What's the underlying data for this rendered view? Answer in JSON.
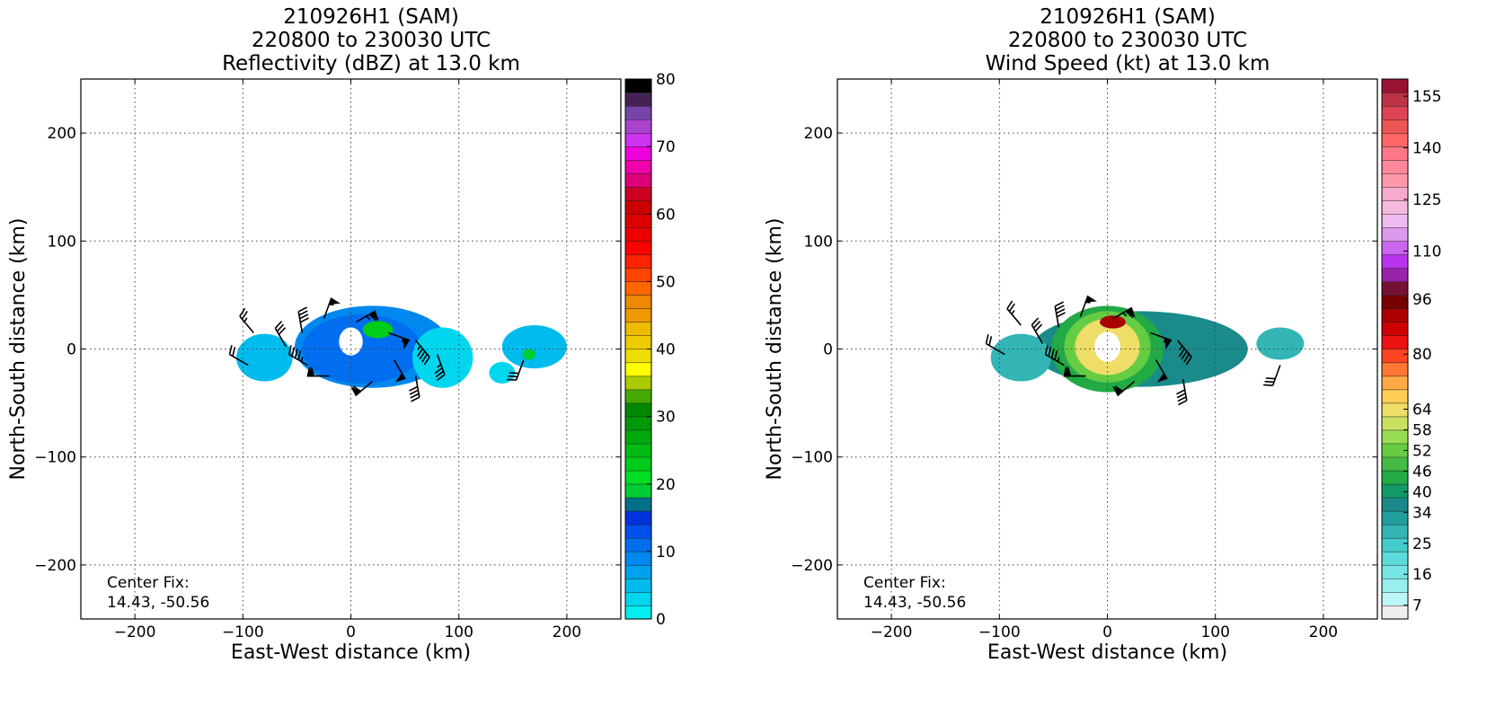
{
  "chart_data": [
    {
      "type": "heatmap",
      "title_lines": [
        "210926H1 (SAM)",
        "220800 to 230030 UTC",
        "Reflectivity (dBZ) at 13.0 km"
      ],
      "xlabel": "East-West distance (km)",
      "ylabel": "North-South distance (km)",
      "xlim": [
        -250,
        250
      ],
      "ylim": [
        -250,
        250
      ],
      "xticks": [
        -200,
        -100,
        0,
        100,
        200
      ],
      "yticks": [
        200,
        100,
        0,
        -100,
        -200
      ],
      "grid": true,
      "annotation": [
        "Center Fix:",
        "14.43, -50.56"
      ],
      "colorbar": {
        "ticks": [
          0,
          10,
          20,
          30,
          40,
          50,
          60,
          70,
          80
        ],
        "bounds": [
          0,
          80
        ],
        "colors": [
          "#00eeee",
          "#00d6ee",
          "#00bcee",
          "#00a2ee",
          "#0088ee",
          "#006eee",
          "#0050ee",
          "#0032dd",
          "#00708a",
          "#00cc33",
          "#00dd22",
          "#00cc1a",
          "#00bb13",
          "#00aa0d",
          "#009908",
          "#008800",
          "#44aa00",
          "#aacc00",
          "#ffff00",
          "#eedd00",
          "#eecc00",
          "#eebb00",
          "#ee9900",
          "#ee8800",
          "#ff6600",
          "#ff4400",
          "#ff2200",
          "#ff0000",
          "#ee0000",
          "#dd0000",
          "#cc0000",
          "#cc0022",
          "#dd0077",
          "#ee00aa",
          "#ee00dd",
          "#cc33ee",
          "#aa44cc",
          "#7744aa",
          "#442255",
          "#000000"
        ]
      },
      "fields": [
        {
          "cx": 20,
          "cy": 2,
          "rx": 72,
          "ry": 38,
          "value": 9
        },
        {
          "cx": 10,
          "cy": 0,
          "rx": 55,
          "ry": 32,
          "value": 11
        },
        {
          "cx": -80,
          "cy": -8,
          "rx": 26,
          "ry": 22,
          "value": 5
        },
        {
          "cx": 85,
          "cy": -8,
          "rx": 28,
          "ry": 28,
          "value": 3
        },
        {
          "cx": 170,
          "cy": 2,
          "rx": 30,
          "ry": 20,
          "value": 4
        },
        {
          "cx": 140,
          "cy": -22,
          "rx": 12,
          "ry": 10,
          "value": 2
        },
        {
          "cx": 25,
          "cy": 18,
          "rx": 14,
          "ry": 8,
          "value": 22
        },
        {
          "cx": 165,
          "cy": -5,
          "rx": 6,
          "ry": 5,
          "value": 18
        },
        {
          "cx": 0,
          "cy": 7,
          "rx": 11,
          "ry": 13,
          "value": null
        }
      ],
      "barbs": [
        {
          "x": -90,
          "y": 15,
          "speed": 25,
          "dir": 320
        },
        {
          "x": -95,
          "y": -15,
          "speed": 20,
          "dir": 300
        },
        {
          "x": -60,
          "y": 2,
          "speed": 30,
          "dir": 330
        },
        {
          "x": -45,
          "y": 15,
          "speed": 40,
          "dir": 350
        },
        {
          "x": -40,
          "y": -15,
          "speed": 45,
          "dir": 300
        },
        {
          "x": -25,
          "y": 28,
          "speed": 55,
          "dir": 20
        },
        {
          "x": -20,
          "y": -25,
          "speed": 60,
          "dir": 270
        },
        {
          "x": 5,
          "y": 25,
          "speed": 65,
          "dir": 60
        },
        {
          "x": 20,
          "y": -30,
          "speed": 60,
          "dir": 230
        },
        {
          "x": 35,
          "y": 15,
          "speed": 55,
          "dir": 110
        },
        {
          "x": 40,
          "y": -10,
          "speed": 50,
          "dir": 150
        },
        {
          "x": 60,
          "y": 8,
          "speed": 45,
          "dir": 140
        },
        {
          "x": 60,
          "y": -25,
          "speed": 40,
          "dir": 170
        },
        {
          "x": 80,
          "y": -5,
          "speed": 35,
          "dir": 160
        },
        {
          "x": 160,
          "y": -10,
          "speed": 30,
          "dir": 200
        }
      ]
    },
    {
      "type": "heatmap",
      "title_lines": [
        "210926H1 (SAM)",
        "220800 to 230030 UTC",
        "Wind Speed (kt) at 13.0 km"
      ],
      "xlabel": "East-West distance (km)",
      "ylabel": "North-South distance (km)",
      "xlim": [
        -250,
        250
      ],
      "ylim": [
        -250,
        250
      ],
      "xticks": [
        -200,
        -100,
        0,
        100,
        200
      ],
      "yticks": [
        200,
        100,
        0,
        -100,
        -200
      ],
      "grid": true,
      "annotation": [
        "Center Fix:",
        "14.43, -50.56"
      ],
      "colorbar": {
        "ticks": [
          7,
          16,
          25,
          34,
          40,
          46,
          52,
          58,
          64,
          80,
          96,
          110,
          125,
          140,
          155
        ],
        "bounds": [
          3,
          160
        ],
        "colors": [
          "#eeeeee",
          "#bbf5f5",
          "#99eeee",
          "#77e5e5",
          "#5ddada",
          "#44cccc",
          "#33b5b5",
          "#229e9e",
          "#1a8a8a",
          "#119966",
          "#22aa44",
          "#44bb44",
          "#66cc44",
          "#99dd55",
          "#cce060",
          "#eedd66",
          "#ffcc55",
          "#ffaa44",
          "#ff7733",
          "#ff4422",
          "#ee1111",
          "#cc0000",
          "#aa0000",
          "#770000",
          "#771133",
          "#9922aa",
          "#bb33ee",
          "#cc66ee",
          "#dd99ee",
          "#eebbf0",
          "#f5bbdd",
          "#f8aacc",
          "#ff99aa",
          "#ff8899",
          "#ff7788",
          "#ff6666",
          "#ee5555",
          "#dd4455",
          "#bb3344",
          "#991133"
        ]
      },
      "fields": [
        {
          "cx": 30,
          "cy": 0,
          "rx": 100,
          "ry": 35,
          "value": 36
        },
        {
          "cx": -80,
          "cy": -8,
          "rx": 28,
          "ry": 22,
          "value": 27
        },
        {
          "cx": 0,
          "cy": 0,
          "rx": 52,
          "ry": 40,
          "value": 46
        },
        {
          "cx": 0,
          "cy": 2,
          "rx": 40,
          "ry": 33,
          "value": 54
        },
        {
          "cx": 0,
          "cy": 2,
          "rx": 30,
          "ry": 26,
          "value": 62
        },
        {
          "cx": 5,
          "cy": 25,
          "rx": 12,
          "ry": 6,
          "value": 90
        },
        {
          "cx": 160,
          "cy": 5,
          "rx": 22,
          "ry": 15,
          "value": 27
        },
        {
          "cx": 0,
          "cy": 2,
          "rx": 12,
          "ry": 14,
          "value": null
        }
      ],
      "barbs": [
        {
          "x": -80,
          "y": 22,
          "speed": 25,
          "dir": 320
        },
        {
          "x": -95,
          "y": -5,
          "speed": 20,
          "dir": 300
        },
        {
          "x": -60,
          "y": 5,
          "speed": 30,
          "dir": 330
        },
        {
          "x": -45,
          "y": 20,
          "speed": 40,
          "dir": 350
        },
        {
          "x": -40,
          "y": -15,
          "speed": 45,
          "dir": 300
        },
        {
          "x": -25,
          "y": 30,
          "speed": 55,
          "dir": 20
        },
        {
          "x": -20,
          "y": -25,
          "speed": 60,
          "dir": 270
        },
        {
          "x": 5,
          "y": 28,
          "speed": 65,
          "dir": 60
        },
        {
          "x": 25,
          "y": -30,
          "speed": 60,
          "dir": 230
        },
        {
          "x": 40,
          "y": 15,
          "speed": 55,
          "dir": 110
        },
        {
          "x": 45,
          "y": -10,
          "speed": 50,
          "dir": 150
        },
        {
          "x": 65,
          "y": 8,
          "speed": 45,
          "dir": 140
        },
        {
          "x": 70,
          "y": -28,
          "speed": 40,
          "dir": 170
        },
        {
          "x": 160,
          "y": -15,
          "speed": 30,
          "dir": 200
        }
      ]
    }
  ]
}
